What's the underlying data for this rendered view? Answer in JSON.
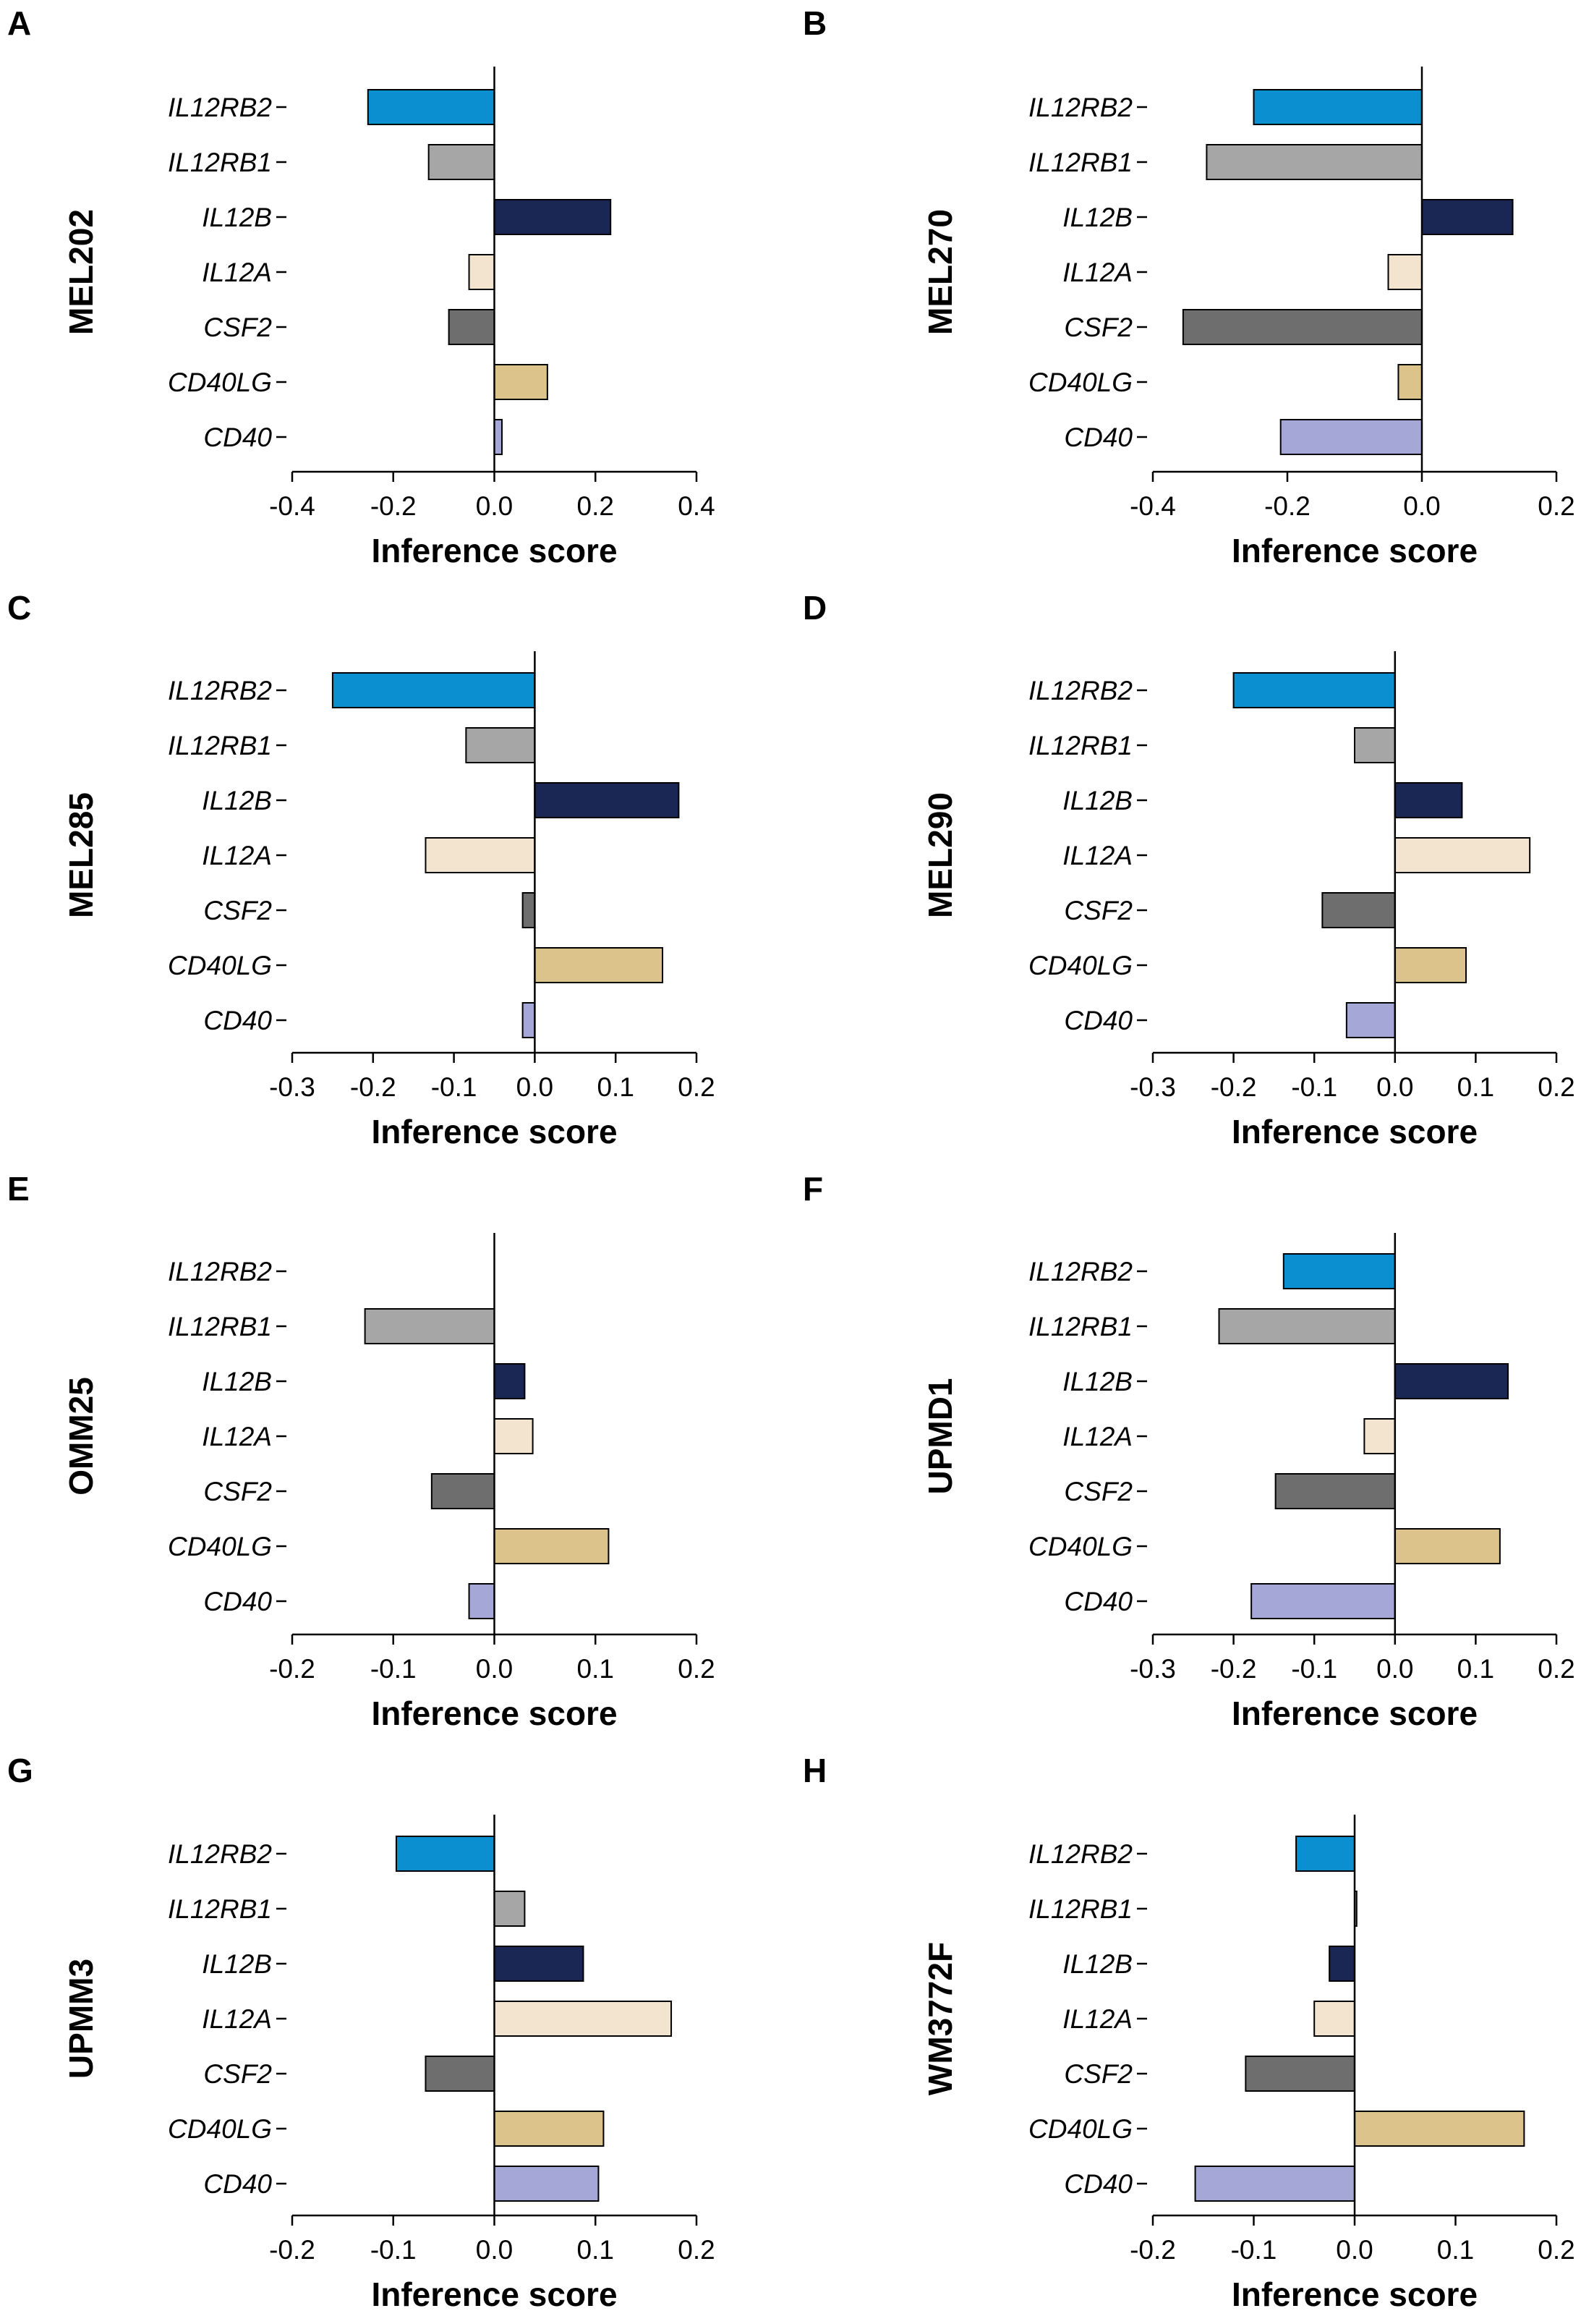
{
  "x_axis_title": "Inference score",
  "gene_order": [
    "IL12RB2",
    "IL12RB1",
    "IL12B",
    "IL12A",
    "CSF2",
    "CD40LG",
    "CD40"
  ],
  "colors": {
    "IL12RB2": "#0C8FD0",
    "IL12RB1": "#A6A6A6",
    "IL12B": "#1A2654",
    "IL12A": "#F3E4D0",
    "CSF2": "#6E6E6E",
    "CD40LG": "#DCC38C",
    "CD40": "#A5A8D6"
  },
  "chart_data": [
    {
      "type": "bar",
      "orientation": "horizontal",
      "panel": "A",
      "title": "MEL202",
      "xlabel": "Inference score",
      "xlim": [
        -0.4,
        0.4
      ],
      "xticks": [
        -0.4,
        -0.2,
        0.0,
        0.2,
        0.4
      ],
      "xtick_labels": [
        "-0.4",
        "-0.2",
        "0.0",
        "0.2",
        "0.4"
      ],
      "categories": [
        "IL12RB2",
        "IL12RB1",
        "IL12B",
        "IL12A",
        "CSF2",
        "CD40LG",
        "CD40"
      ],
      "values": [
        -0.25,
        -0.13,
        0.23,
        -0.05,
        -0.09,
        0.105,
        0.015
      ]
    },
    {
      "type": "bar",
      "orientation": "horizontal",
      "panel": "B",
      "title": "MEL270",
      "xlabel": "Inference score",
      "xlim": [
        -0.4,
        0.2
      ],
      "xticks": [
        -0.4,
        -0.2,
        0.0,
        0.2
      ],
      "xtick_labels": [
        "-0.4",
        "-0.2",
        "0.0",
        "0.2"
      ],
      "categories": [
        "IL12RB2",
        "IL12RB1",
        "IL12B",
        "IL12A",
        "CSF2",
        "CD40LG",
        "CD40"
      ],
      "values": [
        -0.25,
        -0.32,
        0.135,
        -0.05,
        -0.355,
        -0.035,
        -0.21
      ]
    },
    {
      "type": "bar",
      "orientation": "horizontal",
      "panel": "C",
      "title": "MEL285",
      "xlabel": "Inference score",
      "xlim": [
        -0.3,
        0.2
      ],
      "xticks": [
        -0.3,
        -0.2,
        -0.1,
        0.0,
        0.1,
        0.2
      ],
      "xtick_labels": [
        "-0.3",
        "-0.2",
        "-0.1",
        "0.0",
        "0.1",
        "0.2"
      ],
      "categories": [
        "IL12RB2",
        "IL12RB1",
        "IL12B",
        "IL12A",
        "CSF2",
        "CD40LG",
        "CD40"
      ],
      "values": [
        -0.25,
        -0.085,
        0.178,
        -0.135,
        -0.015,
        0.158,
        -0.015
      ]
    },
    {
      "type": "bar",
      "orientation": "horizontal",
      "panel": "D",
      "title": "MEL290",
      "xlabel": "Inference score",
      "xlim": [
        -0.3,
        0.2
      ],
      "xticks": [
        -0.3,
        -0.2,
        -0.1,
        0.0,
        0.1,
        0.2
      ],
      "xtick_labels": [
        "-0.3",
        "-0.2",
        "-0.1",
        "0.0",
        "0.1",
        "0.2"
      ],
      "categories": [
        "IL12RB2",
        "IL12RB1",
        "IL12B",
        "IL12A",
        "CSF2",
        "CD40LG",
        "CD40"
      ],
      "values": [
        -0.2,
        -0.05,
        0.083,
        0.167,
        -0.09,
        0.088,
        -0.06
      ]
    },
    {
      "type": "bar",
      "orientation": "horizontal",
      "panel": "E",
      "title": "OMM25",
      "xlabel": "Inference score",
      "xlim": [
        -0.2,
        0.2
      ],
      "xticks": [
        -0.2,
        -0.1,
        0.0,
        0.1,
        0.2
      ],
      "xtick_labels": [
        "-0.2",
        "-0.1",
        "0.0",
        "0.1",
        "0.2"
      ],
      "categories": [
        "IL12RB2",
        "IL12RB1",
        "IL12B",
        "IL12A",
        "CSF2",
        "CD40LG",
        "CD40"
      ],
      "values": [
        0,
        -0.128,
        0.03,
        0.038,
        -0.062,
        0.113,
        -0.025
      ]
    },
    {
      "type": "bar",
      "orientation": "horizontal",
      "panel": "F",
      "title": "UPMD1",
      "xlabel": "Inference score",
      "xlim": [
        -0.3,
        0.2
      ],
      "xticks": [
        -0.3,
        -0.2,
        -0.1,
        0.0,
        0.1,
        0.2
      ],
      "xtick_labels": [
        "-0.3",
        "-0.2",
        "-0.1",
        "0.0",
        "0.1",
        "0.2"
      ],
      "categories": [
        "IL12RB2",
        "IL12RB1",
        "IL12B",
        "IL12A",
        "CSF2",
        "CD40LG",
        "CD40"
      ],
      "values": [
        -0.138,
        -0.218,
        0.14,
        -0.038,
        -0.148,
        0.13,
        -0.178
      ]
    },
    {
      "type": "bar",
      "orientation": "horizontal",
      "panel": "G",
      "title": "UPMM3",
      "xlabel": "Inference score",
      "xlim": [
        -0.2,
        0.2
      ],
      "xticks": [
        -0.2,
        -0.1,
        0.0,
        0.1,
        0.2
      ],
      "xtick_labels": [
        "-0.2",
        "-0.1",
        "0.0",
        "0.1",
        "0.2"
      ],
      "categories": [
        "IL12RB2",
        "IL12RB1",
        "IL12B",
        "IL12A",
        "CSF2",
        "CD40LG",
        "CD40"
      ],
      "values": [
        -0.097,
        0.03,
        0.088,
        0.175,
        -0.068,
        0.108,
        0.103
      ]
    },
    {
      "type": "bar",
      "orientation": "horizontal",
      "panel": "H",
      "title": "WM3772F",
      "xlabel": "Inference score",
      "xlim": [
        -0.2,
        0.2
      ],
      "xticks": [
        -0.2,
        -0.1,
        0.0,
        0.1,
        0.2
      ],
      "xtick_labels": [
        "-0.2",
        "-0.1",
        "0.0",
        "0.1",
        "0.2"
      ],
      "categories": [
        "IL12RB2",
        "IL12RB1",
        "IL12B",
        "IL12A",
        "CSF2",
        "CD40LG",
        "CD40"
      ],
      "values": [
        -0.058,
        0.002,
        -0.025,
        -0.04,
        -0.108,
        0.168,
        -0.158
      ]
    }
  ]
}
